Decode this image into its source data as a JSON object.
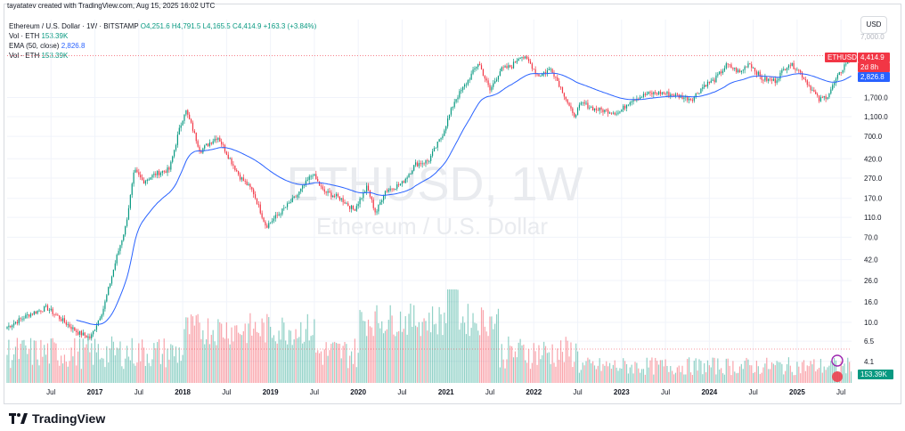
{
  "credit": "tayatatev created with TradingView.com, Aug 15, 2025 16:02 UTC",
  "legend": {
    "line1_title": "Ethereum / U.S. Dollar · 1W · BITSTAMP",
    "line1_ohlc": "O4,251.6  H4,791.5  L4,165.5  C4,414.9  +163.3 (+3.84%)",
    "line2_label": "Vol · ETH",
    "line2_value": "153.39K",
    "line3_label": "EMA (50, close)",
    "line3_value": "2,826.8",
    "line4_label": "Vol · ETH",
    "line4_value": "153.39K"
  },
  "currency_button": "USD",
  "brand": "TradingView",
  "watermark": {
    "symbol": "ETHUSD, 1W",
    "name": "Ethereum / U.S. Dollar"
  },
  "price_tags": {
    "symbol": "ETHUSD",
    "last": "4,414.9",
    "countdown": "2d 8h",
    "ema": "2,826.8",
    "volume": "153.39K",
    "top_partial": "7,000.0"
  },
  "colors": {
    "up": "#089981",
    "down": "#f23645",
    "ema": "#2962ff",
    "grid": "#f0f3fa",
    "text": "#131722"
  },
  "chart_data": {
    "type": "candlestick",
    "title": "Ethereum / U.S. Dollar · 1W · BITSTAMP",
    "scale": "log",
    "y_ticks": [
      "1,700.0",
      "1,100.0",
      "700.0",
      "420.0",
      "270.0",
      "170.0",
      "110.0",
      "70.0",
      "42.0",
      "26.0",
      "16.0",
      "10.0",
      "6.5",
      "4.1"
    ],
    "y_tick_values": [
      1700,
      1100,
      700,
      420,
      270,
      170,
      110,
      70,
      42,
      26,
      16,
      10,
      6.5,
      4.1
    ],
    "x_ticks": [
      "Jul",
      "2017",
      "Jul",
      "2018",
      "Jul",
      "2019",
      "Jul",
      "2020",
      "Jul",
      "2021",
      "Jul",
      "2022",
      "Jul",
      "2023",
      "Jul",
      "2024",
      "Jul",
      "2025",
      "Jul"
    ],
    "x_tick_years": [
      2016.5,
      2017,
      2017.5,
      2018,
      2018.5,
      2019,
      2019.5,
      2020,
      2020.5,
      2021,
      2021.5,
      2022,
      2022.5,
      2023,
      2023.5,
      2024,
      2024.5,
      2025,
      2025.5
    ],
    "date_range": [
      2016.0,
      2025.62
    ],
    "price_path": [
      [
        2016.0,
        9
      ],
      [
        2016.25,
        12
      ],
      [
        2016.45,
        14
      ],
      [
        2016.6,
        11
      ],
      [
        2016.8,
        8
      ],
      [
        2016.95,
        7
      ],
      [
        2017.1,
        14
      ],
      [
        2017.25,
        45
      ],
      [
        2017.35,
        90
      ],
      [
        2017.45,
        320
      ],
      [
        2017.55,
        250
      ],
      [
        2017.7,
        300
      ],
      [
        2017.85,
        330
      ],
      [
        2017.95,
        750
      ],
      [
        2018.03,
        1300
      ],
      [
        2018.1,
        900
      ],
      [
        2018.2,
        500
      ],
      [
        2018.3,
        600
      ],
      [
        2018.4,
        700
      ],
      [
        2018.5,
        480
      ],
      [
        2018.65,
        280
      ],
      [
        2018.8,
        200
      ],
      [
        2018.95,
        90
      ],
      [
        2019.1,
        120
      ],
      [
        2019.3,
        180
      ],
      [
        2019.48,
        300
      ],
      [
        2019.6,
        200
      ],
      [
        2019.8,
        170
      ],
      [
        2019.95,
        130
      ],
      [
        2020.1,
        220
      ],
      [
        2020.2,
        120
      ],
      [
        2020.3,
        200
      ],
      [
        2020.5,
        240
      ],
      [
        2020.65,
        370
      ],
      [
        2020.8,
        400
      ],
      [
        2020.95,
        700
      ],
      [
        2021.1,
        1600
      ],
      [
        2021.25,
        2500
      ],
      [
        2021.37,
        3800
      ],
      [
        2021.5,
        2000
      ],
      [
        2021.62,
        3200
      ],
      [
        2021.75,
        3500
      ],
      [
        2021.85,
        4500
      ],
      [
        2021.95,
        3800
      ],
      [
        2022.05,
        2800
      ],
      [
        2022.2,
        3300
      ],
      [
        2022.35,
        1800
      ],
      [
        2022.45,
        1100
      ],
      [
        2022.55,
        1500
      ],
      [
        2022.7,
        1300
      ],
      [
        2022.85,
        1250
      ],
      [
        2022.97,
        1200
      ],
      [
        2023.1,
        1600
      ],
      [
        2023.3,
        1850
      ],
      [
        2023.45,
        1900
      ],
      [
        2023.6,
        1800
      ],
      [
        2023.8,
        1650
      ],
      [
        2023.95,
        2300
      ],
      [
        2024.05,
        2500
      ],
      [
        2024.2,
        3600
      ],
      [
        2024.35,
        3000
      ],
      [
        2024.45,
        3800
      ],
      [
        2024.6,
        2600
      ],
      [
        2024.75,
        2500
      ],
      [
        2024.9,
        3700
      ],
      [
        2025.0,
        3300
      ],
      [
        2025.1,
        2500
      ],
      [
        2025.25,
        1600
      ],
      [
        2025.35,
        1800
      ],
      [
        2025.45,
        2600
      ],
      [
        2025.55,
        3700
      ],
      [
        2025.62,
        4415
      ]
    ],
    "volume_note": "weekly volume bars in bottom pane, peak near early 2021",
    "volume_last": "153.39K",
    "ema_period": 50,
    "ema_last": 2826.8,
    "last_close": 4414.9
  }
}
